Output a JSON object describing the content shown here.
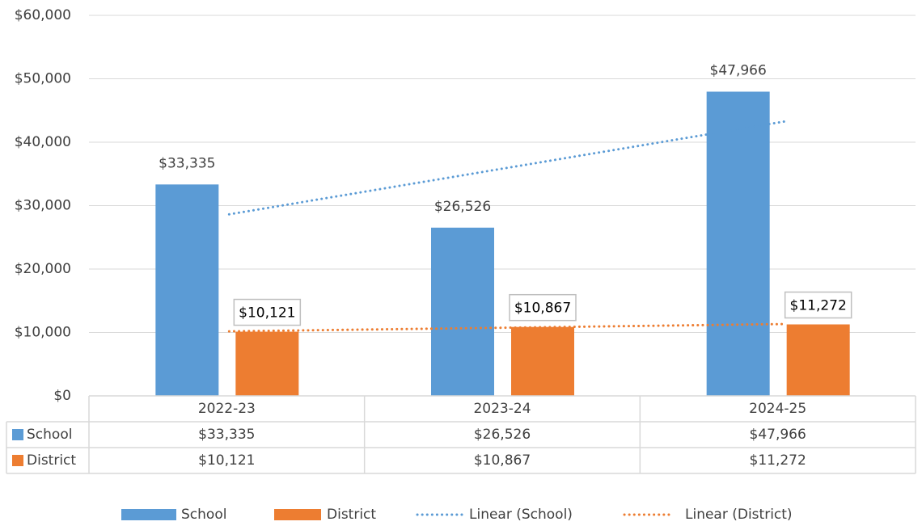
{
  "chart_data": {
    "type": "bar",
    "categories": [
      "2022-23",
      "2023-24",
      "2024-25"
    ],
    "series": [
      {
        "name": "School",
        "color": "#5b9bd5",
        "values": [
          33335,
          26526,
          47966
        ],
        "value_labels": [
          "$33,335",
          "$26,526",
          "$47,966"
        ]
      },
      {
        "name": "District",
        "color": "#ed7d31",
        "values": [
          10121,
          10867,
          11272
        ],
        "value_labels": [
          "$10,121",
          "$10,867",
          "$11,272"
        ]
      }
    ],
    "trendlines": [
      {
        "name": "Linear (School)",
        "color": "#5b9bd5",
        "series": 0
      },
      {
        "name": "Linear (District)",
        "color": "#ed7d31",
        "series": 1
      }
    ],
    "ylim": [
      0,
      60000
    ],
    "yticks": [
      {
        "value": 0,
        "label": "$0"
      },
      {
        "value": 10000,
        "label": "$10,000"
      },
      {
        "value": 20000,
        "label": "$20,000"
      },
      {
        "value": 30000,
        "label": "$30,000"
      },
      {
        "value": 40000,
        "label": "$40,000"
      },
      {
        "value": 50000,
        "label": "$50,000"
      },
      {
        "value": 60000,
        "label": "$60,000"
      }
    ],
    "grid": true,
    "data_table": true,
    "legend": "bottom"
  }
}
